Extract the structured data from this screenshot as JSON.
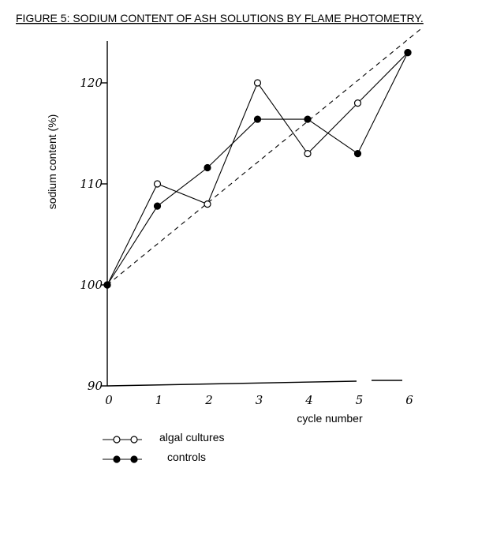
{
  "chart_data": {
    "type": "line",
    "title": "FIGURE 5: SODIUM CONTENT OF ASH SOLUTIONS BY FLAME PHOTOMETRY.",
    "xlabel": "cycle number",
    "ylabel": "sodium content (%)",
    "xlim": [
      0,
      6
    ],
    "ylim": [
      90,
      125
    ],
    "x_ticks": [
      "0",
      "1",
      "2",
      "3",
      "4",
      "5",
      "6"
    ],
    "y_ticks": [
      "90",
      "100",
      "110",
      "120"
    ],
    "grid": false,
    "legend_position": "bottom-left",
    "series": [
      {
        "name": "algal cultures",
        "marker": "open-circle",
        "x": [
          0,
          1,
          2,
          3,
          4,
          5,
          6
        ],
        "values": [
          100,
          110,
          108,
          120,
          113,
          118,
          123
        ]
      },
      {
        "name": "controls",
        "marker": "filled-circle",
        "x": [
          0,
          1,
          2,
          3,
          4,
          5,
          6
        ],
        "values": [
          100,
          107.8,
          111.6,
          116.4,
          116.4,
          113,
          123
        ]
      }
    ],
    "trend_line": {
      "style": "dashed",
      "x": [
        0,
        6.3
      ],
      "values": [
        100,
        125.5
      ]
    }
  }
}
